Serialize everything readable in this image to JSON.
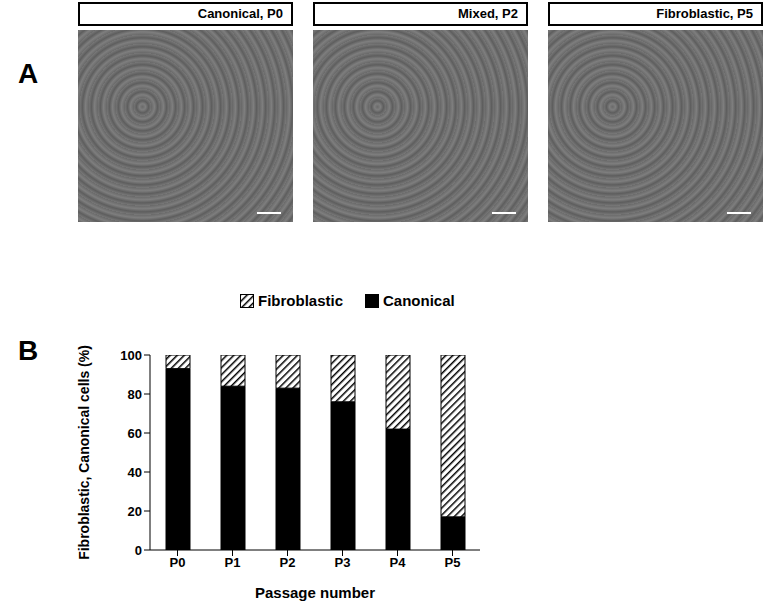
{
  "figure": {
    "panels": [
      {
        "label": "A",
        "images": [
          "Canonical, P0",
          "Mixed, P2",
          "Fibroblastic, P5"
        ]
      },
      {
        "label": "B"
      }
    ]
  },
  "chart_data": {
    "type": "bar",
    "stacked": true,
    "categories": [
      "P0",
      "P1",
      "P2",
      "P3",
      "P4",
      "P5"
    ],
    "series": [
      {
        "name": "Canonical",
        "color": "#000000",
        "line_style": "solid",
        "values": [
          93,
          84,
          83,
          76,
          62,
          17
        ]
      },
      {
        "name": "Fibroblastic",
        "color": "#000000",
        "line_style": "hatched",
        "values": [
          7,
          16,
          17,
          24,
          38,
          83
        ]
      }
    ],
    "x_label": "Passage number",
    "y_label": "Fibroblastic, Canonical cells (%)",
    "ylim": [
      0,
      100
    ],
    "yticks": [
      0,
      20,
      40,
      60,
      80,
      100
    ],
    "legend": "top",
    "grid": false
  }
}
